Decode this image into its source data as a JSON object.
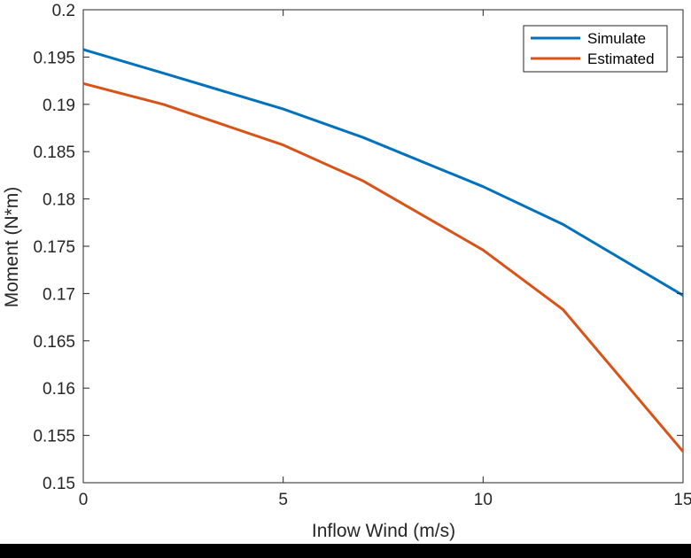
{
  "chart_data": {
    "type": "line",
    "title": "",
    "xlabel": "Inflow Wind (m/s)",
    "ylabel": "Moment (N*m)",
    "xlim": [
      0,
      15
    ],
    "ylim": [
      0.15,
      0.2
    ],
    "xticks": [
      0,
      5,
      10,
      15
    ],
    "xtick_labels": [
      "0",
      "5",
      "10",
      "15"
    ],
    "yticks": [
      0.15,
      0.155,
      0.16,
      0.165,
      0.17,
      0.175,
      0.18,
      0.185,
      0.19,
      0.195,
      0.2
    ],
    "ytick_labels": [
      "0.15",
      "0.155",
      "0.16",
      "0.165",
      "0.17",
      "0.175",
      "0.18",
      "0.185",
      "0.19",
      "0.195",
      "0.2"
    ],
    "grid": false,
    "legend_position": "top-right",
    "x": [
      0,
      2,
      5,
      7,
      10,
      12,
      15
    ],
    "series": [
      {
        "name": "Simulate",
        "color": "#0072BD",
        "values": [
          0.1958,
          0.1933,
          0.1895,
          0.1865,
          0.1813,
          0.1773,
          0.1698
        ]
      },
      {
        "name": "Estimated",
        "color": "#D95319",
        "values": [
          0.1922,
          0.19,
          0.1857,
          0.1819,
          0.1746,
          0.1683,
          0.1533
        ]
      }
    ]
  }
}
